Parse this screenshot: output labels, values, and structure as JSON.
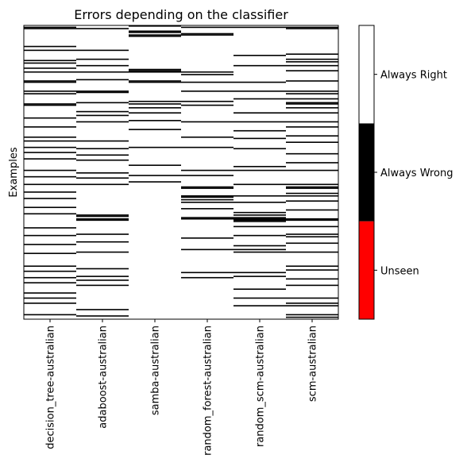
{
  "chart_data": {
    "type": "heatmap",
    "title": "Errors depending on the classifier",
    "ylabel": "Examples",
    "xlabel": "",
    "categories": [
      "decision_tree-australian",
      "adaboost-australian",
      "samba-australian",
      "random_forest-australian",
      "random_scm-australian",
      "scm-australian"
    ],
    "n_examples": 230,
    "value_legend": [
      {
        "value": 0,
        "label": "Unseen",
        "color": "#ff0000"
      },
      {
        "value": 1,
        "label": "Always Wrong",
        "color": "#000000"
      },
      {
        "value": 2,
        "label": "Always Right",
        "color": "#ffffff"
      }
    ],
    "errors": [
      [
        1,
        2,
        16,
        19,
        27,
        29,
        33,
        36,
        43,
        44,
        51,
        53,
        61,
        62,
        72,
        79,
        87,
        90,
        95,
        99,
        104,
        113,
        118,
        124,
        130,
        135,
        142,
        147,
        158,
        164,
        171,
        178,
        188,
        192,
        197,
        201,
        209,
        213,
        217,
        226
      ],
      [
        2,
        19,
        26,
        31,
        36,
        42,
        51,
        52,
        60,
        67,
        70,
        75,
        90,
        96,
        101,
        105,
        115,
        119,
        124,
        148,
        149,
        151,
        152,
        163,
        169,
        177,
        190,
        196,
        199,
        203,
        222,
        227
      ],
      [
        0,
        4,
        5,
        7,
        8,
        34,
        35,
        36,
        43,
        44,
        59,
        61,
        64,
        68,
        74,
        81,
        95,
        109,
        117,
        122
      ],
      [
        1,
        6,
        7,
        36,
        38,
        44,
        51,
        59,
        62,
        75,
        87,
        95,
        113,
        117,
        126,
        127,
        133,
        134,
        136,
        138,
        143,
        150,
        151,
        166,
        175,
        193,
        197
      ],
      [
        1,
        23,
        31,
        44,
        51,
        57,
        68,
        75,
        82,
        88,
        96,
        110,
        113,
        124,
        133,
        138,
        146,
        148,
        150,
        151,
        152,
        153,
        157,
        164,
        172,
        175,
        177,
        193,
        196,
        206,
        213,
        219
      ],
      [
        1,
        2,
        22,
        26,
        28,
        31,
        35,
        43,
        51,
        53,
        57,
        60,
        61,
        64,
        68,
        75,
        79,
        86,
        91,
        100,
        107,
        113,
        124,
        126,
        127,
        131,
        133,
        137,
        144,
        151,
        152,
        157,
        163,
        165,
        170,
        177,
        188,
        191,
        198,
        203,
        213,
        217,
        219,
        226,
        228
      ]
    ]
  }
}
